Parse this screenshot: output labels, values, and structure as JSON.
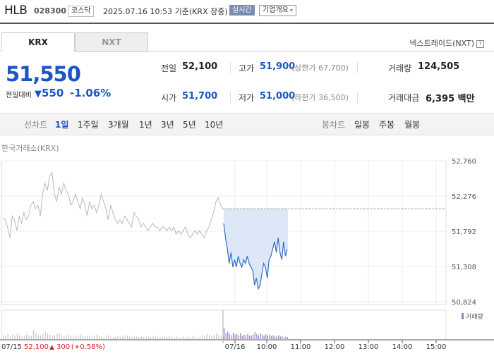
{
  "header": {
    "name": "HLB",
    "code": "028300",
    "market_badge": "코스닥",
    "datetime": "2025.07.16 10:53",
    "basis": "기준(KRX 장중)",
    "live_badge": "실시간",
    "info_button": "기업개요",
    "info_arrow": "▾"
  },
  "tabs": [
    {
      "label": "KRX"
    },
    {
      "label": "NXT"
    }
  ],
  "nxt_link": "넥스트레이드(NXT)",
  "nxt_help": "?",
  "quote": {
    "price": "51,550",
    "diff_label": "전일대비",
    "diff_arrow": "▼",
    "diff_value": "550",
    "diff_pct": "-1.06%",
    "color_down": "#1a55c4"
  },
  "stats": {
    "prev_label": "전일",
    "prev_value": "52,100",
    "high_label": "고가",
    "high_value": "51,900",
    "upper_limit": "(상한가 67,700)",
    "volume_label": "거래량",
    "volume_value": "124,505",
    "open_label": "시가",
    "open_value": "51,700",
    "low_label": "저가",
    "low_value": "51,000",
    "lower_limit": "(하한가 36,500)",
    "amount_label": "거래대금",
    "amount_value": "6,395 백만"
  },
  "line_chart": {
    "label": "선차트",
    "periods": [
      "1일",
      "1주일",
      "3개월",
      "1년",
      "3년",
      "5년",
      "10년"
    ],
    "selected": "1일"
  },
  "candle_chart": {
    "label": "봉차트",
    "periods": [
      "일봉",
      "주봉",
      "월봉"
    ]
  },
  "market_label": "한국거래소(KRX)",
  "chart_data": {
    "type": "line",
    "y_ticks": [
      "52,760",
      "52,276",
      "51,792",
      "51,308",
      "50,824"
    ],
    "ylim": [
      50824,
      52760
    ],
    "x_ticks": [
      "07/16",
      "10:00",
      "11:00",
      "12:00",
      "13:00",
      "14:00",
      "15:00"
    ],
    "prev_day_label": "07/15",
    "prev_day_close": "52,100",
    "prev_day_change_arrow": "▲",
    "prev_day_change": "300",
    "prev_day_change_pct": "(+0.58%)",
    "reference_price": 52100,
    "volume_legend": "거래량",
    "series": [
      {
        "session": "07/15",
        "values": [
          51980,
          51950,
          51850,
          51700,
          52000,
          51950,
          51800,
          52000,
          51900,
          52050,
          51950,
          52000,
          52150,
          52200,
          52100,
          52150,
          52000,
          52300,
          52450,
          52350,
          52550,
          52600,
          52300,
          52200,
          52400,
          52300,
          52450,
          52350,
          52300,
          52150,
          52200,
          52300,
          52200,
          52100,
          52250,
          52150,
          52000,
          52200,
          52100,
          52150,
          52050,
          52150,
          52300,
          52200,
          52100,
          51950,
          52150,
          52050,
          51950,
          51900,
          51950,
          51900,
          52000,
          51950,
          51900,
          51850,
          52050,
          52000,
          51950,
          51850,
          51900,
          51850,
          51800,
          51850,
          51900,
          51850,
          51850,
          51800,
          51850,
          51850,
          51800,
          51850,
          51800,
          51850,
          51750,
          51800,
          51750,
          51800,
          51850,
          51750,
          51700,
          51750,
          51800,
          51750,
          51800,
          51750,
          51700,
          51800,
          51850,
          51950,
          52050,
          52200,
          52250,
          52150,
          52100
        ]
      },
      {
        "session": "07/16",
        "values": [
          51900,
          51700,
          51550,
          51350,
          51500,
          51300,
          51400,
          51300,
          51450,
          51350,
          51300,
          51400,
          51350,
          51450,
          51350,
          51300,
          51250,
          51050,
          51150,
          51000,
          51050,
          51200,
          51350,
          51300,
          51150,
          51400,
          51450,
          51550,
          51650,
          51500,
          51700,
          51500,
          51400,
          51650,
          51450,
          51550
        ]
      }
    ],
    "volume": {
      "prev_day": [
        6,
        5,
        8,
        4,
        7,
        5,
        9,
        6,
        4,
        5,
        7,
        6,
        5,
        14,
        10,
        7,
        6,
        8,
        12,
        9,
        7,
        5,
        6,
        8,
        10,
        6,
        5,
        7,
        6,
        5,
        4,
        6,
        5,
        7,
        5,
        4,
        5,
        6,
        4,
        5,
        7,
        5,
        4,
        3,
        5,
        6,
        4,
        3,
        4,
        5,
        3,
        4,
        6,
        5,
        4,
        3,
        5,
        4,
        3,
        4,
        3,
        5,
        4,
        3,
        4,
        5,
        3,
        4,
        3,
        4,
        3,
        5,
        4,
        3,
        4,
        3,
        2,
        4,
        3,
        4,
        3,
        5,
        4,
        3,
        4,
        6,
        5,
        8,
        7,
        5,
        6,
        9,
        7,
        5,
        4
      ],
      "today": [
        18,
        9,
        12,
        8,
        6,
        10,
        7,
        8,
        6,
        9,
        5,
        7,
        6,
        8,
        5,
        6,
        7,
        11,
        8,
        6,
        9,
        7,
        5,
        8,
        6,
        7,
        5,
        6,
        4,
        5,
        6,
        4,
        5,
        3,
        4,
        3
      ]
    }
  }
}
